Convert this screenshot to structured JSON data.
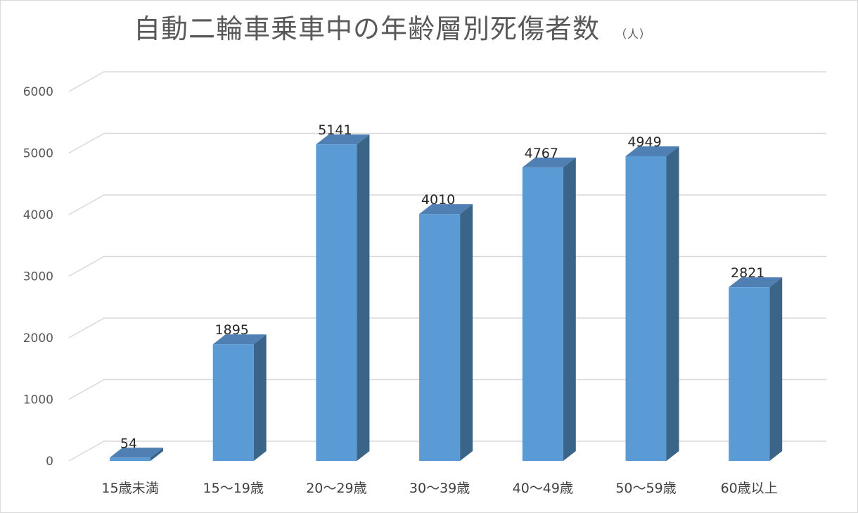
{
  "chart_data": {
    "type": "bar",
    "title": "自動二輪車乗車中の年齢層別死傷者数",
    "unit": "（人）",
    "categories": [
      "15歳未満",
      "15～19歳",
      "20～29歳",
      "30～39歳",
      "40～49歳",
      "50～59歳",
      "60歳以上"
    ],
    "values": [
      54,
      1895,
      5141,
      4010,
      4767,
      4949,
      2821
    ],
    "ylim": [
      0,
      6000
    ],
    "yticks": [
      "0",
      "1000",
      "2000",
      "3000",
      "4000",
      "5000",
      "6000"
    ],
    "grid": true,
    "style": "3d-column",
    "colors": {
      "front": "#5b9bd5",
      "side": "#3a6488",
      "top": "#4f7fb3",
      "grid": "#d9d9d9"
    }
  }
}
